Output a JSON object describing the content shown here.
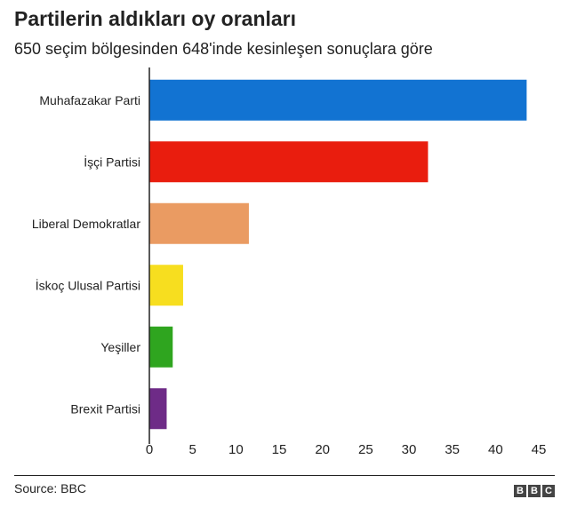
{
  "chart_data": {
    "type": "bar",
    "orientation": "horizontal",
    "title": "Partilerin aldıkları oy oranları",
    "subtitle": "650 seçim bölgesinden 648'inde kesinleşen sonuçlara göre",
    "categories": [
      "Muhafazakar Parti",
      "İşçi Partisi",
      "Liberal Demokratlar",
      "İskoç Ulusal Partisi",
      "Yeşiller",
      "Brexit Partisi"
    ],
    "values": [
      43.6,
      32.2,
      11.5,
      3.9,
      2.7,
      2.0
    ],
    "colors": [
      "#1273d2",
      "#e91d0e",
      "#ea9b62",
      "#f7de1f",
      "#2fa51f",
      "#6e2b87"
    ],
    "xlim": [
      0,
      45
    ],
    "xticks": [
      "0",
      "5",
      "10",
      "15",
      "20",
      "25",
      "30",
      "35",
      "40",
      "45"
    ],
    "xlabel": "",
    "ylabel": "",
    "grid": false,
    "legend": "none"
  },
  "footer": {
    "source": "Source: BBC",
    "logo_letters": [
      "B",
      "B",
      "C"
    ]
  }
}
